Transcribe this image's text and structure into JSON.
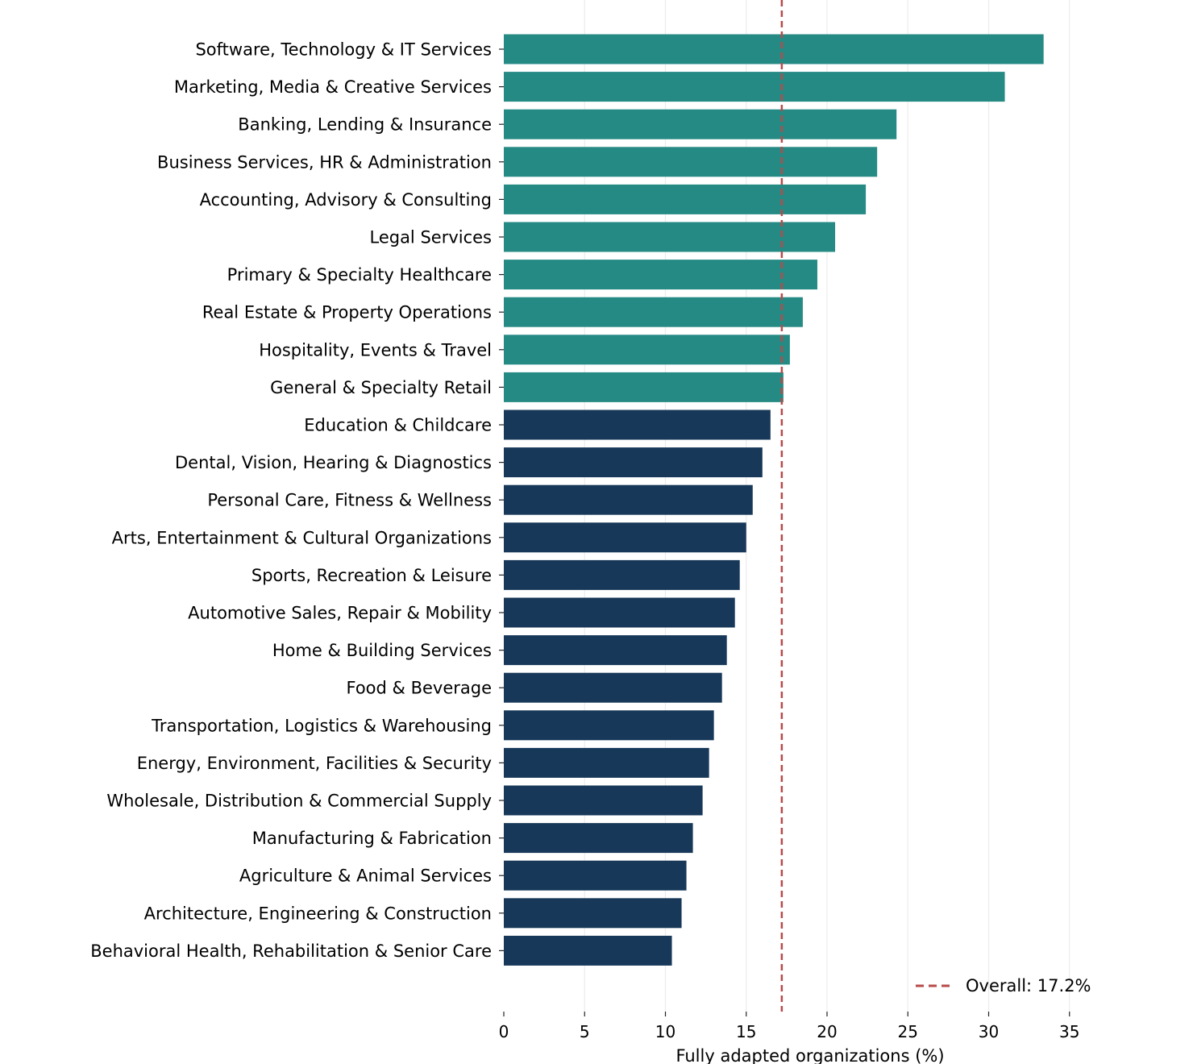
{
  "chart_data": {
    "type": "bar",
    "orientation": "horizontal",
    "title": "",
    "xlabel": "Fully adapted organizations (%)",
    "ylabel": "",
    "xlim": [
      0,
      35
    ],
    "xticks": [
      0,
      5,
      10,
      15,
      20,
      25,
      30,
      35
    ],
    "xtick_labels": [
      "0",
      "5",
      "10",
      "15",
      "20",
      "25",
      "30",
      "35"
    ],
    "grid": "vertical",
    "categories": [
      "Software, Technology & IT Services",
      "Marketing, Media & Creative Services",
      "Banking, Lending & Insurance",
      "Business Services, HR & Administration",
      "Accounting, Advisory & Consulting",
      "Legal Services",
      "Primary & Specialty Healthcare",
      "Real Estate & Property Operations",
      "Hospitality, Events & Travel",
      "General & Specialty Retail",
      "Education & Childcare",
      "Dental, Vision, Hearing & Diagnostics",
      "Personal Care, Fitness & Wellness",
      "Arts, Entertainment & Cultural Organizations",
      "Sports, Recreation & Leisure",
      "Automotive Sales, Repair & Mobility",
      "Home & Building Services",
      "Food & Beverage",
      "Transportation, Logistics & Warehousing",
      "Energy, Environment, Facilities & Security",
      "Wholesale, Distribution & Commercial Supply",
      "Manufacturing & Fabrication",
      "Agriculture & Animal Services",
      "Architecture, Engineering & Construction",
      "Behavioral Health, Rehabilitation & Senior Care"
    ],
    "values": [
      33.4,
      31.0,
      24.3,
      23.1,
      22.4,
      20.5,
      19.4,
      18.5,
      17.7,
      17.3,
      16.5,
      16.0,
      15.4,
      15.0,
      14.6,
      14.3,
      13.8,
      13.5,
      13.0,
      12.7,
      12.3,
      11.7,
      11.3,
      11.0,
      10.4
    ],
    "reference_line": {
      "value": 17.2,
      "label": "Overall: 17.2%",
      "style": "dashed"
    },
    "legend_position": "bottom-right",
    "colors": {
      "above_overall": "#268a84",
      "below_overall": "#173859",
      "reference_line": "#b84a4a",
      "grid": "#ececec"
    }
  }
}
